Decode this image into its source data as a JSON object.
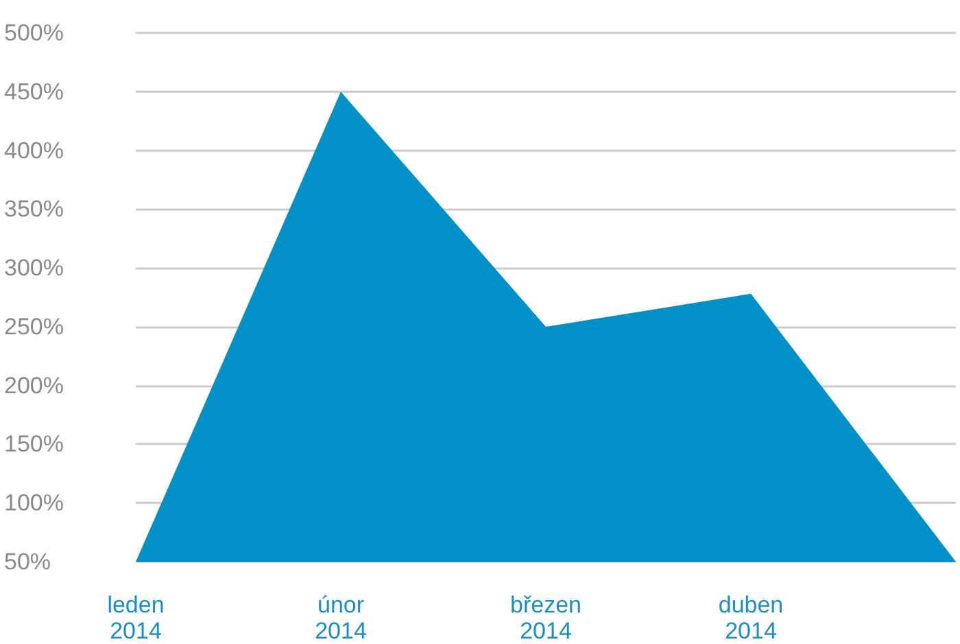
{
  "chart_data": {
    "type": "area",
    "categories": [
      "leden 2014",
      "únor 2014",
      "březen 2014",
      "duben 2014",
      null
    ],
    "series": [
      {
        "color": "#0091c9",
        "values": [
          50,
          450,
          250,
          278,
          50
        ]
      }
    ],
    "ylim": [
      50,
      500
    ],
    "yticks": [
      {
        "value": 50,
        "label": "50%"
      },
      {
        "value": 100,
        "label": "100%"
      },
      {
        "value": 150,
        "label": "150%"
      },
      {
        "value": 200,
        "label": "200%"
      },
      {
        "value": 250,
        "label": "250%"
      },
      {
        "value": 300,
        "label": "300%"
      },
      {
        "value": 350,
        "label": "350%"
      },
      {
        "value": 400,
        "label": "400%"
      },
      {
        "value": 450,
        "label": "450%"
      },
      {
        "value": 500,
        "label": "500%"
      }
    ],
    "grid": "y",
    "marker": "none"
  }
}
